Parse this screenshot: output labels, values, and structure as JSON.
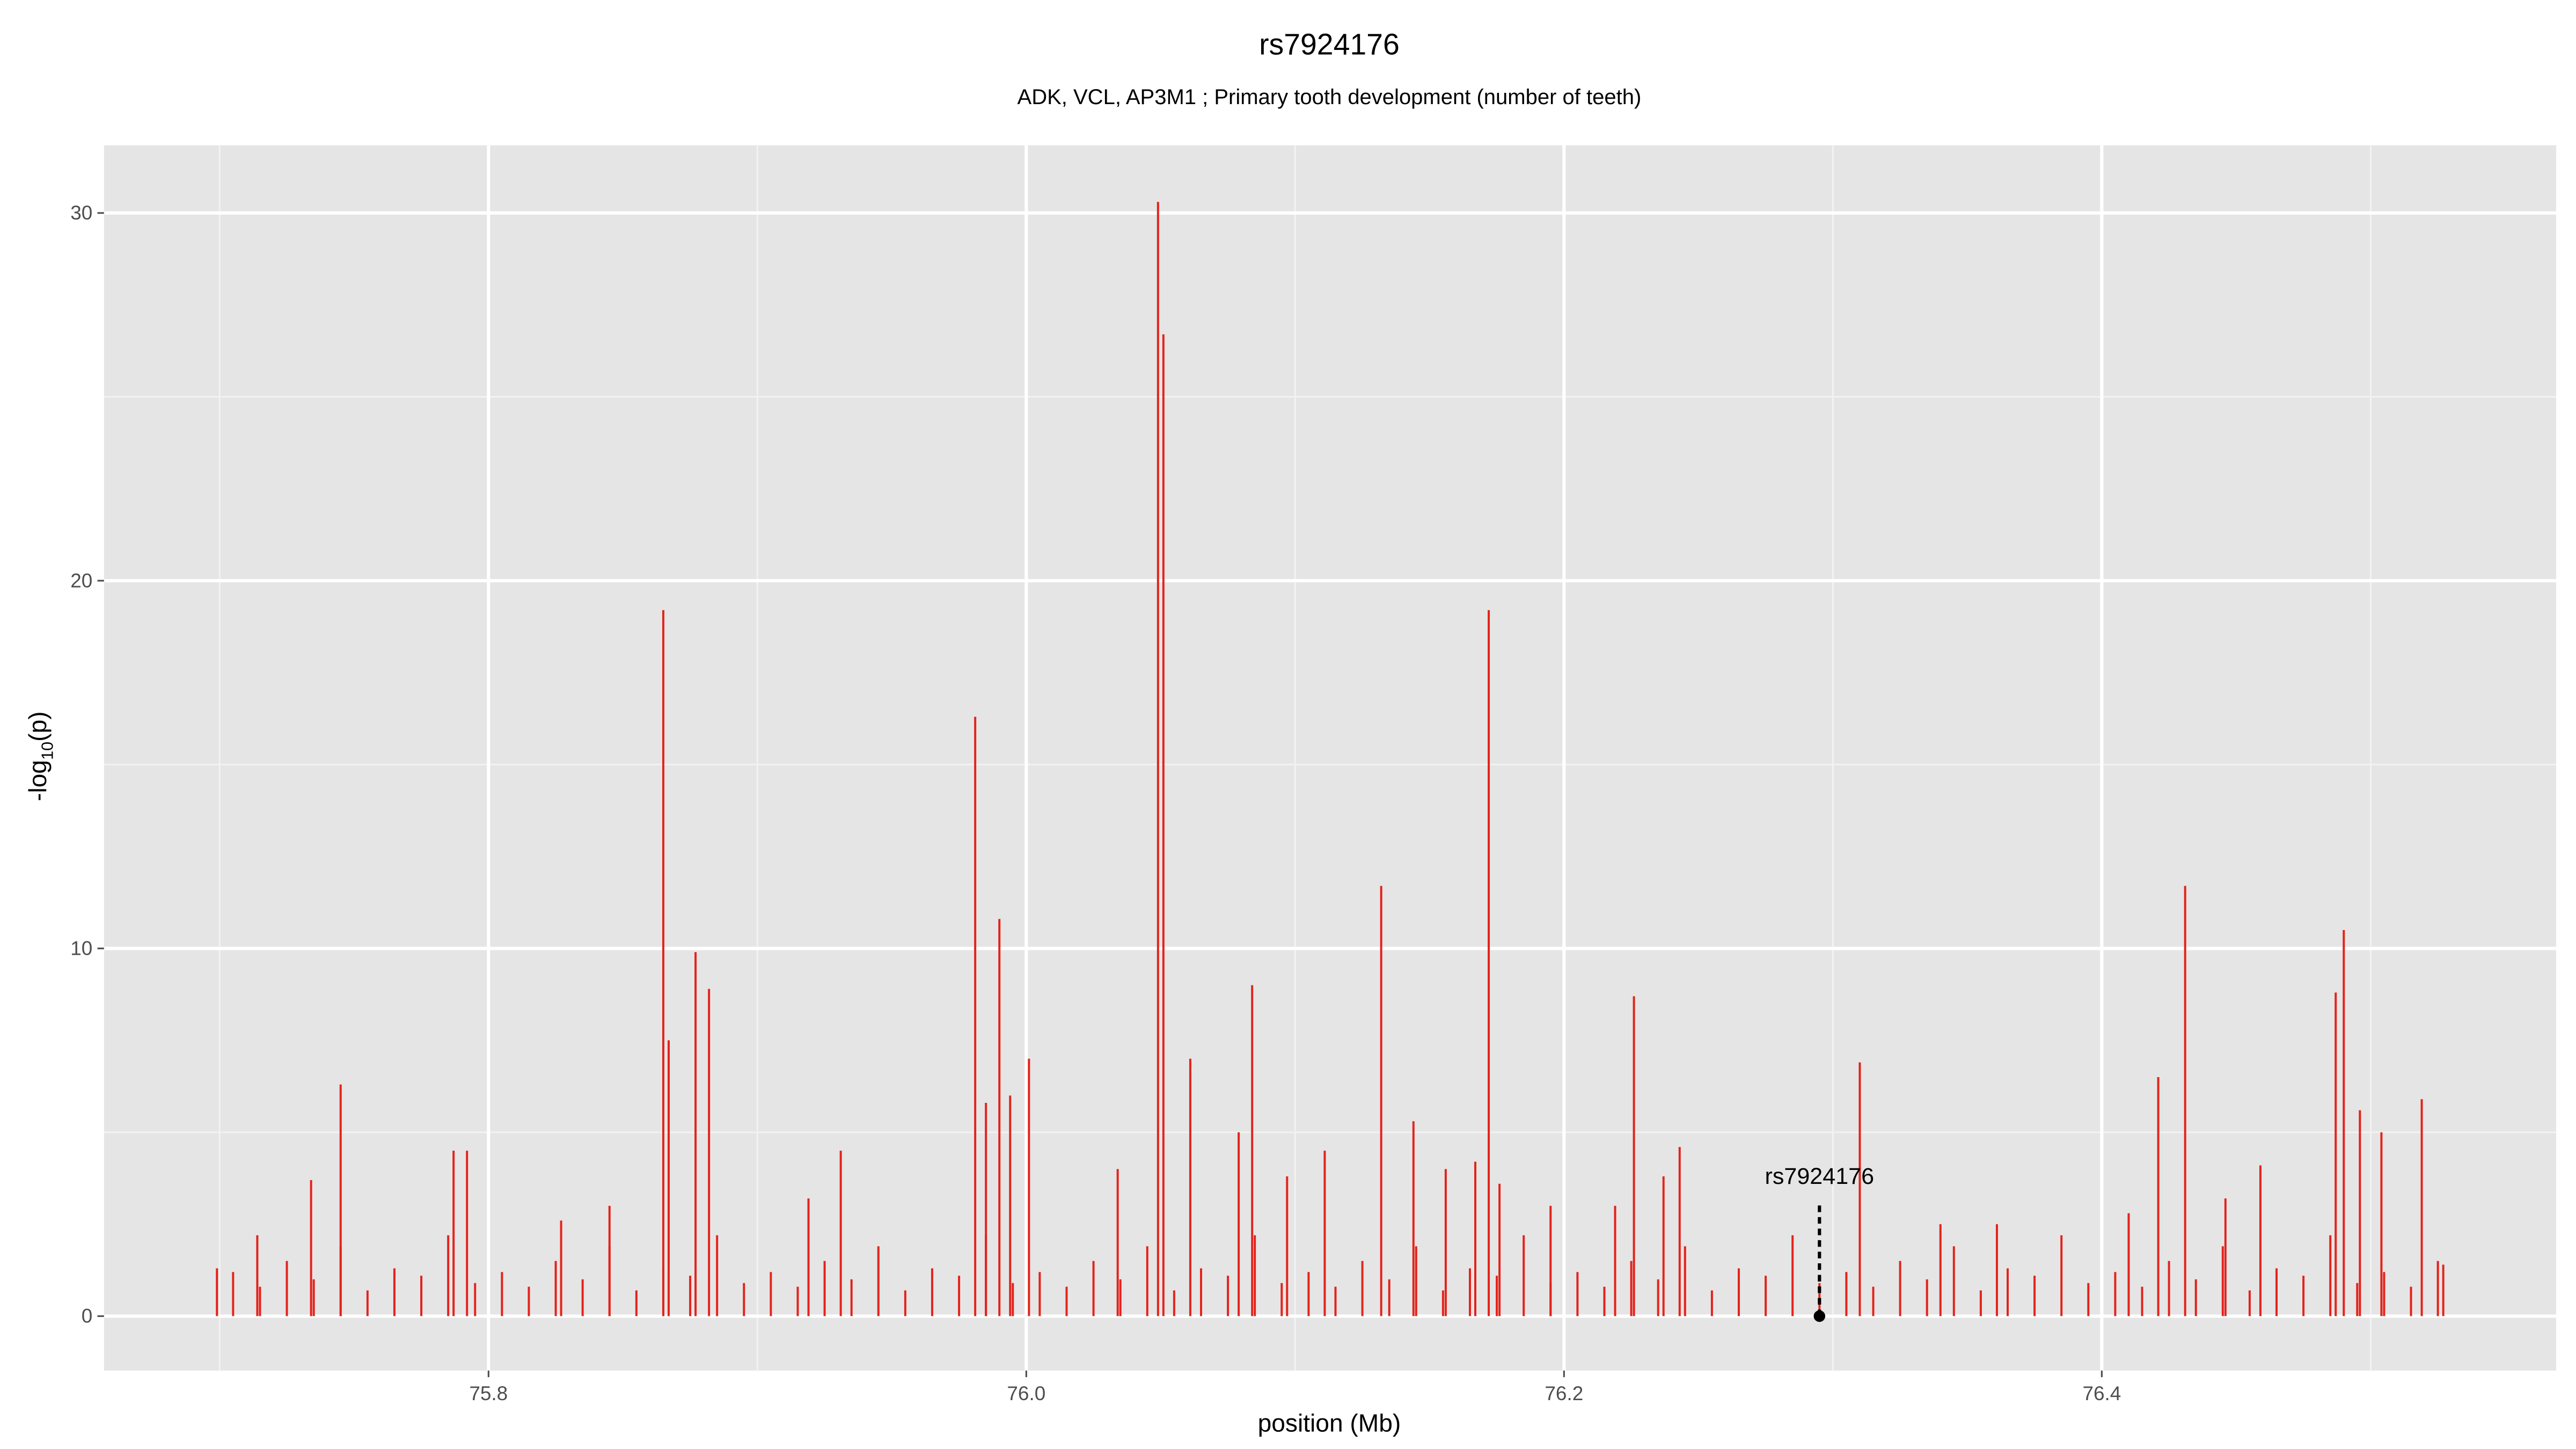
{
  "chart_data": {
    "type": "spike",
    "title": "rs7924176",
    "subtitle": "ADK, VCL, AP3M1 ; Primary tooth development (number of teeth)",
    "xlabel": "position (Mb)",
    "ylabel": [
      "-log",
      "10",
      "(p)"
    ],
    "xlim": [
      75.657,
      76.569
    ],
    "ylim": [
      -1.48,
      31.84
    ],
    "xticks": [
      {
        "value": 75.8,
        "label": "75.8"
      },
      {
        "value": 76.0,
        "label": "76.0"
      },
      {
        "value": 76.2,
        "label": "76.2"
      },
      {
        "value": 76.4,
        "label": "76.4"
      }
    ],
    "yticks": [
      0,
      10,
      20,
      30
    ],
    "minor_xticks": [
      75.7,
      75.9,
      76.1,
      76.3,
      76.5
    ],
    "minor_yticks": [
      5,
      15,
      25
    ],
    "grid": true,
    "color": "#e4231b",
    "x": [
      75.699,
      75.714,
      75.734,
      75.745,
      75.787,
      75.792,
      75.827,
      75.845,
      75.865,
      75.867,
      75.877,
      75.882,
      75.919,
      75.931,
      75.981,
      75.985,
      75.99,
      75.994,
      76.001,
      76.034,
      76.049,
      76.051,
      76.061,
      76.079,
      76.084,
      76.097,
      76.111,
      76.132,
      76.144,
      76.156,
      76.167,
      76.172,
      76.176,
      76.195,
      76.219,
      76.226,
      76.237,
      76.243,
      76.31,
      76.34,
      76.361,
      76.41,
      76.421,
      76.431,
      76.446,
      76.459,
      76.487,
      76.49,
      76.496,
      76.504,
      76.519,
      76.527,
      75.705,
      75.715,
      75.725,
      75.735,
      75.745,
      75.755,
      75.765,
      75.775,
      75.785,
      75.795,
      75.805,
      75.815,
      75.825,
      75.835,
      75.845,
      75.855,
      75.865,
      75.875,
      75.885,
      75.895,
      75.905,
      75.915,
      75.925,
      75.935,
      75.945,
      75.955,
      75.965,
      75.975,
      75.985,
      75.995,
      76.005,
      76.015,
      76.025,
      76.035,
      76.045,
      76.055,
      76.065,
      76.075,
      76.085,
      76.095,
      76.105,
      76.115,
      76.125,
      76.135,
      76.145,
      76.155,
      76.165,
      76.175,
      76.185,
      76.195,
      76.205,
      76.215,
      76.225,
      76.235,
      76.245,
      76.255,
      76.265,
      76.275,
      76.285,
      76.295,
      76.305,
      76.315,
      76.325,
      76.335,
      76.345,
      76.355,
      76.365,
      76.375,
      76.385,
      76.395,
      76.405,
      76.415,
      76.425,
      76.435,
      76.445,
      76.455,
      76.465,
      76.475,
      76.485,
      76.495,
      76.505,
      76.515,
      76.525
    ],
    "values": [
      1.3,
      2.2,
      3.7,
      6.3,
      4.5,
      4.5,
      2.6,
      3.0,
      19.2,
      7.5,
      9.9,
      8.9,
      3.2,
      4.5,
      16.3,
      5.8,
      10.8,
      6.0,
      7.0,
      4.0,
      30.3,
      26.7,
      7.0,
      5.0,
      9.0,
      3.8,
      4.5,
      11.7,
      5.3,
      4.0,
      4.2,
      19.2,
      3.6,
      3.0,
      3.0,
      8.7,
      3.8,
      4.6,
      6.9,
      2.5,
      2.5,
      2.8,
      6.5,
      11.7,
      3.2,
      4.1,
      8.8,
      10.5,
      5.6,
      5.0,
      5.9,
      1.4,
      1.2,
      0.8,
      1.5,
      1.0,
      1.9,
      0.7,
      1.3,
      1.1,
      2.2,
      0.9,
      1.2,
      0.8,
      1.5,
      1.0,
      1.9,
      0.7,
      1.3,
      1.1,
      2.2,
      0.9,
      1.2,
      0.8,
      1.5,
      1.0,
      1.9,
      0.7,
      1.3,
      1.1,
      2.2,
      0.9,
      1.2,
      0.8,
      1.5,
      1.0,
      1.9,
      0.7,
      1.3,
      1.1,
      2.2,
      0.9,
      1.2,
      0.8,
      1.5,
      1.0,
      1.9,
      0.7,
      1.3,
      1.1,
      2.2,
      0.9,
      1.2,
      0.8,
      1.5,
      1.0,
      1.9,
      0.7,
      1.3,
      1.1,
      2.2,
      0.9,
      1.2,
      0.8,
      1.5,
      1.0,
      1.9,
      0.7,
      1.3,
      1.1,
      2.2,
      0.9,
      1.2,
      0.8,
      1.5,
      1.0,
      1.9,
      0.7,
      1.3,
      1.1,
      2.2,
      0.9,
      1.2,
      0.8,
      1.5
    ],
    "annotation": {
      "label": "rs7924176",
      "x": 76.295,
      "y": 0,
      "line_top": 3.1
    }
  }
}
